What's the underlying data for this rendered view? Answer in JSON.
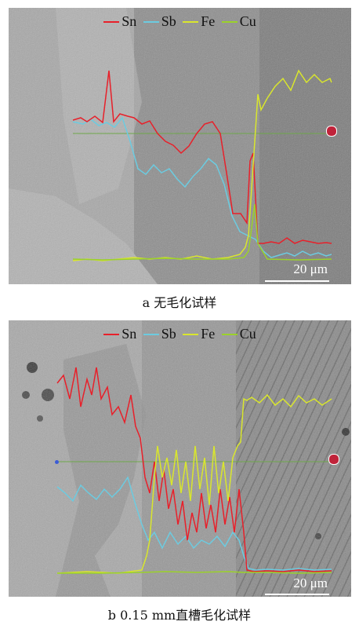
{
  "legend": {
    "items": [
      {
        "label": "Sn",
        "color": "#e8202a"
      },
      {
        "label": "Sb",
        "color": "#6ccbe0"
      },
      {
        "label": "Fe",
        "color": "#d9e62d"
      },
      {
        "label": "Cu",
        "color": "#9bd12a"
      }
    ]
  },
  "panel_a": {
    "scale_label": "20 μm",
    "caption": "a  无毛化试样"
  },
  "panel_b": {
    "scale_label": "20 μm",
    "caption": "b  0.15 mm直槽毛化试样"
  }
}
